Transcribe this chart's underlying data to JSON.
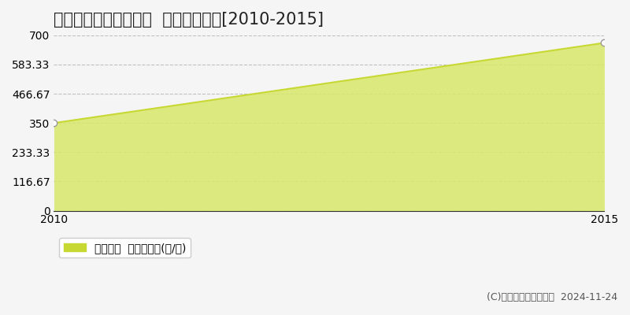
{
  "title": "北津軽郡鶴田町妙堂崎  林地価格推移[2010-2015]",
  "years": [
    2010,
    2015
  ],
  "values": [
    350,
    670
  ],
  "ylim": [
    0,
    700
  ],
  "yticks": [
    0,
    116.67,
    233.33,
    350,
    466.67,
    583.33,
    700
  ],
  "ytick_labels": [
    "0",
    "116.67",
    "233.33",
    "350",
    "466.67",
    "583.33",
    "700"
  ],
  "xlim": [
    2010,
    2015
  ],
  "xticks": [
    2010,
    2015
  ],
  "line_color": "#c8d832",
  "fill_color": "#d8e86a",
  "fill_alpha": 0.85,
  "marker_color": "#ffffff",
  "marker_edge_color": "#999999",
  "marker_size": 6,
  "grid_color": "#aaaaaa",
  "grid_style": "--",
  "grid_alpha": 0.7,
  "background_color": "#f5f5f5",
  "legend_label": "林地価格  平均坪単価(円/坪)",
  "copyright_text": "(C)土地価格ドットコム  2024-11-24",
  "title_fontsize": 15,
  "tick_fontsize": 10,
  "legend_fontsize": 10,
  "copyright_fontsize": 9
}
